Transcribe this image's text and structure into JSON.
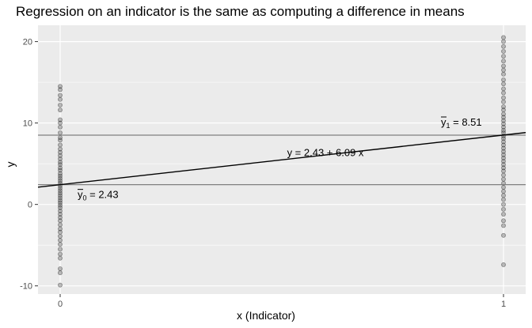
{
  "chart_data": {
    "type": "scatter",
    "title": "Regression on an indicator is the same as computing a difference in means",
    "xlabel": "x (Indicator)",
    "ylabel": "y",
    "x_ticks": [
      0,
      1
    ],
    "y_ticks": [
      -10,
      0,
      10,
      20
    ],
    "xlim": [
      -0.05,
      1.05
    ],
    "ylim": [
      -11,
      22
    ],
    "grid": true,
    "groups": [
      {
        "x": 0,
        "y": [
          14.5,
          14.1,
          13.4,
          12.9,
          12.2,
          11.6,
          10.4,
          10.0,
          9.5,
          8.8,
          8.2,
          7.9,
          7.3,
          6.8,
          6.4,
          6.0,
          5.6,
          5.2,
          4.9,
          4.5,
          4.2,
          3.8,
          3.5,
          3.2,
          2.9,
          2.6,
          2.3,
          2.0,
          1.7,
          1.4,
          1.1,
          0.8,
          0.5,
          0.2,
          -0.1,
          -0.4,
          -0.8,
          -1.2,
          -1.6,
          -2.0,
          -2.5,
          -3.0,
          -3.4,
          -3.9,
          -4.4,
          -4.9,
          -5.5,
          -6.1,
          -6.6,
          -7.9,
          -8.4,
          -9.9
        ]
      },
      {
        "x": 1,
        "y": [
          20.5,
          20.0,
          19.4,
          18.8,
          18.2,
          17.6,
          17.0,
          16.5,
          16.0,
          15.3,
          14.8,
          14.2,
          13.7,
          13.1,
          12.6,
          12.0,
          11.6,
          11.1,
          10.7,
          10.3,
          9.9,
          9.5,
          9.1,
          8.8,
          8.4,
          8.1,
          7.7,
          7.3,
          6.9,
          6.5,
          6.1,
          5.7,
          5.3,
          4.9,
          4.5,
          4.1,
          3.6,
          3.1,
          2.6,
          2.1,
          1.6,
          1.1,
          0.6,
          0.0,
          -0.6,
          -1.2,
          -2.0,
          -2.6,
          -3.8,
          -7.4
        ]
      }
    ],
    "hlines": [
      {
        "y": 2.43,
        "label_base": "y",
        "label_sub": "0",
        "label_value": " = 2.43"
      },
      {
        "y": 8.51,
        "label_base": "y",
        "label_sub": "1",
        "label_value": " = 8.51"
      }
    ],
    "regression": {
      "intercept": 2.43,
      "slope": 6.09,
      "label": "y = 2.43 + 6.09 x"
    }
  }
}
